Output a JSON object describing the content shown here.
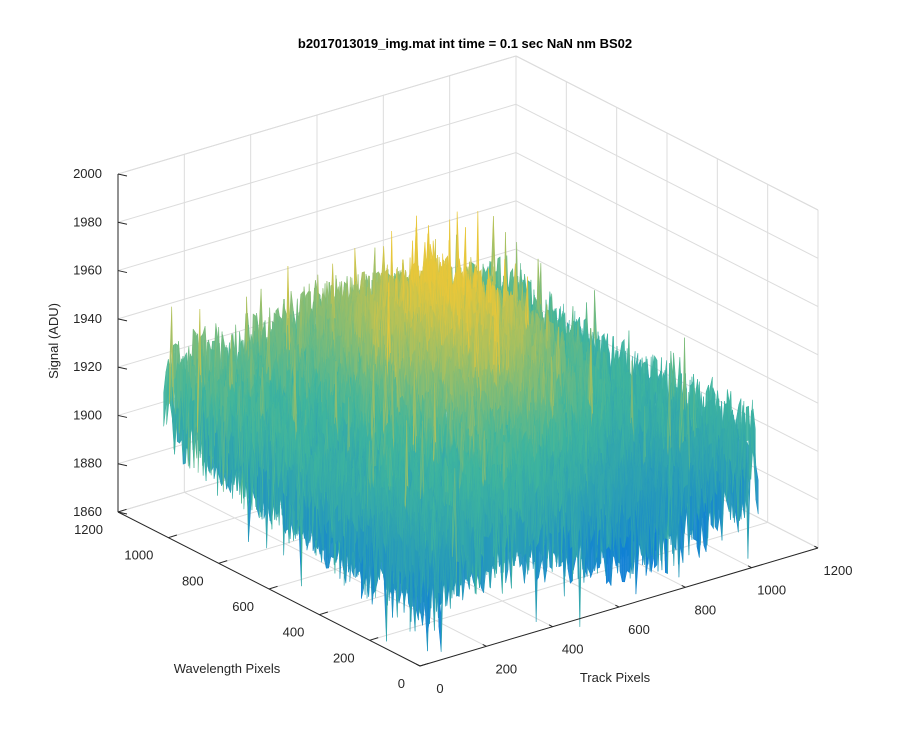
{
  "chart_data": {
    "type": "surface",
    "title": "b2017013019_img.mat int time = 0.1 sec  NaN nm BS02",
    "xlabel": "Track Pixels",
    "ylabel": "Wavelength Pixels",
    "zlabel": "Signal (ADU)",
    "xlim": [
      0,
      1200
    ],
    "ylim": [
      0,
      1200
    ],
    "zlim": [
      1860,
      2000
    ],
    "xticks": [
      0,
      200,
      400,
      600,
      800,
      1000,
      1200
    ],
    "yticks": [
      0,
      200,
      400,
      600,
      800,
      1000,
      1200
    ],
    "zticks": [
      1860,
      1880,
      1900,
      1920,
      1940,
      1960,
      1980,
      2000
    ],
    "grid": true,
    "colormap": "parula",
    "data_extent": {
      "x": [
        0,
        1024
      ],
      "y": [
        0,
        1024
      ]
    },
    "z_summary": {
      "mean": 1920,
      "min": 1865,
      "max": 1993,
      "corner_values": {
        "x0_y0": 1900,
        "x0_y1024": 1925,
        "x1024_y0": 1905,
        "x1024_y1024": 1920
      },
      "central_ridge_peak": 1985
    },
    "colors": {
      "low": "#0f7fd6",
      "mid": "#3fb59d",
      "high": "#e8c73a"
    }
  }
}
